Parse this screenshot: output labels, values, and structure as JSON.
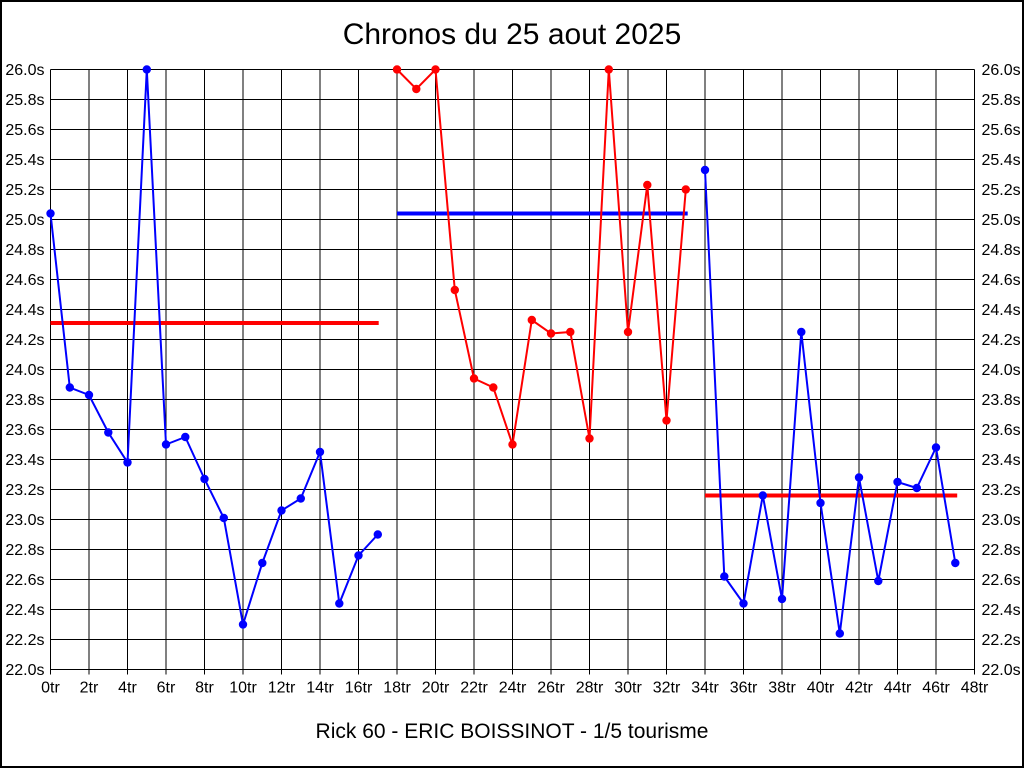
{
  "title": "Chronos du 25 aout 2025",
  "footer": "Rick 60 - ERIC BOISSINOT - 1/5 tourisme",
  "colors": {
    "blue": "#0000ff",
    "red": "#ff0000",
    "grid": "#000000",
    "background": "#ffffff"
  },
  "chart_data": {
    "type": "line",
    "title": "Chronos du 25 aout 2025",
    "subtitle": "Rick 60 - ERIC BOISSINOT - 1/5 tourisme",
    "xlabel": "",
    "ylabel": "",
    "x_unit": "tr",
    "y_unit": "s",
    "xlim": [
      0,
      48
    ],
    "ylim": [
      22.0,
      26.0
    ],
    "x_tick_step": 2,
    "y_tick_step": 0.2,
    "grid": true,
    "legend": "none",
    "x_tick_labels": [
      "0tr",
      "2tr",
      "4tr",
      "6tr",
      "8tr",
      "10tr",
      "12tr",
      "14tr",
      "16tr",
      "18tr",
      "20tr",
      "22tr",
      "24tr",
      "26tr",
      "28tr",
      "30tr",
      "32tr",
      "34tr",
      "36tr",
      "38tr",
      "40tr",
      "42tr",
      "44tr",
      "46tr",
      "48tr"
    ],
    "y_tick_labels": [
      "22.0s",
      "22.2s",
      "22.4s",
      "22.6s",
      "22.8s",
      "23.0s",
      "23.2s",
      "23.4s",
      "23.6s",
      "23.8s",
      "24.0s",
      "24.2s",
      "24.4s",
      "24.6s",
      "24.8s",
      "25.0s",
      "25.2s",
      "25.4s",
      "25.6s",
      "25.8s",
      "26.0s"
    ],
    "series": [
      {
        "name": "stint-1-blue",
        "color": "#0000ff",
        "x": [
          0,
          1,
          2,
          3,
          4,
          5,
          6,
          7,
          8,
          9,
          10,
          11,
          12,
          13,
          14,
          15,
          16,
          17
        ],
        "values": [
          25.04,
          23.88,
          23.83,
          23.58,
          23.38,
          26.0,
          23.5,
          23.55,
          23.27,
          23.01,
          22.3,
          22.71,
          23.06,
          23.14,
          23.45,
          22.44,
          22.76,
          22.9
        ]
      },
      {
        "name": "stint-2-red",
        "color": "#ff0000",
        "x": [
          18,
          19,
          20,
          21,
          22,
          23,
          24,
          25,
          26,
          27,
          28,
          29,
          30,
          31,
          32,
          33
        ],
        "values": [
          26.0,
          25.87,
          26.0,
          24.53,
          23.94,
          23.88,
          23.5,
          24.33,
          24.24,
          24.25,
          23.54,
          26.0,
          24.25,
          25.23,
          23.66,
          25.2
        ]
      },
      {
        "name": "stint-3-blue",
        "color": "#0000ff",
        "x": [
          34,
          35,
          36,
          37,
          38,
          39,
          40,
          41,
          42,
          43,
          44,
          45,
          46,
          47
        ],
        "values": [
          25.33,
          22.62,
          22.44,
          23.16,
          22.47,
          24.25,
          23.11,
          22.24,
          23.28,
          22.59,
          23.25,
          23.21,
          23.48,
          22.71
        ]
      }
    ],
    "reference_lines": [
      {
        "name": "avg-line-stint-1",
        "color": "#ff0000",
        "value": 24.31,
        "x_start": 0,
        "x_end": 17.05
      },
      {
        "name": "avg-line-stint-2",
        "color": "#0000ff",
        "value": 25.04,
        "x_start": 18,
        "x_end": 33.1
      },
      {
        "name": "avg-line-stint-3",
        "color": "#ff0000",
        "value": 23.16,
        "x_start": 34,
        "x_end": 47.1
      }
    ]
  }
}
